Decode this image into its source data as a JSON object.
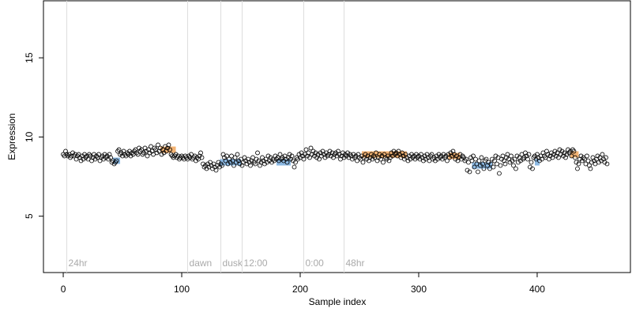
{
  "chart_data": {
    "type": "scatter",
    "xlabel": "Sample index",
    "ylabel": "Expression",
    "xlim": [
      -16.7,
      478.7
    ],
    "xticks": [
      0,
      100,
      200,
      300,
      400
    ],
    "ylim": [
      1.44,
      18.6
    ],
    "yticks": [
      5,
      10,
      15
    ],
    "point_color": "#000000",
    "values": [
      8.9,
      8.8,
      9.1,
      8.9,
      8.8,
      8.9,
      8.7,
      8.8,
      9.0,
      8.8,
      8.9,
      8.6,
      8.8,
      8.9,
      8.7,
      8.5,
      8.8,
      8.6,
      8.9,
      8.7,
      8.8,
      8.6,
      8.9,
      8.8,
      8.5,
      8.7,
      8.9,
      8.6,
      8.8,
      8.7,
      8.9,
      8.5,
      8.7,
      8.8,
      8.6,
      8.9,
      8.7,
      8.8,
      8.6,
      8.9,
      8.7,
      8.4,
      8.5,
      8.3,
      8.4,
      8.5,
      9.1,
      9.2,
      8.9,
      9.0,
      8.8,
      9.1,
      8.9,
      8.8,
      9.0,
      8.9,
      9.1,
      8.8,
      9.0,
      8.9,
      9.1,
      9.2,
      9.0,
      8.9,
      9.3,
      9.1,
      9.2,
      8.9,
      9.0,
      9.3,
      9.1,
      8.8,
      9.2,
      9.0,
      9.4,
      9.1,
      8.9,
      9.3,
      9.2,
      9.0,
      9.5,
      9.1,
      9.3,
      8.9,
      9.2,
      9.0,
      9.4,
      9.1,
      9.3,
      9.5,
      9.2,
      8.9,
      8.8,
      8.7,
      8.8,
      8.9,
      8.7,
      8.8,
      8.6,
      8.7,
      8.8,
      8.7,
      8.6,
      8.8,
      8.7,
      8.6,
      8.8,
      8.7,
      8.9,
      8.6,
      8.7,
      8.8,
      8.5,
      8.7,
      8.6,
      8.8,
      9.0,
      8.7,
      8.3,
      8.1,
      8.2,
      8.0,
      8.3,
      8.1,
      8.4,
      8.2,
      8.0,
      8.3,
      8.1,
      7.9,
      8.2,
      8.4,
      8.1,
      8.3,
      8.2,
      8.9,
      8.7,
      8.5,
      8.8,
      8.3,
      8.6,
      8.4,
      8.8,
      8.5,
      8.2,
      8.7,
      8.4,
      8.9,
      8.5,
      8.3,
      8.6,
      8.2,
      8.4,
      8.7,
      8.5,
      8.3,
      8.6,
      8.4,
      8.2,
      8.5,
      8.7,
      8.4,
      8.3,
      8.6,
      9.0,
      8.5,
      8.2,
      8.4,
      8.7,
      8.5,
      8.3,
      8.6,
      8.4,
      8.8,
      8.5,
      8.7,
      8.4,
      8.6,
      8.5,
      8.8,
      8.6,
      8.7,
      8.5,
      8.9,
      8.6,
      8.7,
      8.5,
      8.8,
      8.6,
      8.4,
      8.7,
      8.9,
      8.6,
      8.8,
      8.5,
      8.1,
      8.4,
      8.7,
      8.6,
      8.9,
      8.7,
      9.0,
      8.8,
      8.6,
      8.9,
      9.2,
      8.8,
      9.0,
      8.7,
      9.3,
      8.9,
      9.1,
      8.8,
      9.0,
      8.7,
      8.9,
      8.6,
      9.0,
      8.8,
      9.1,
      8.9,
      8.7,
      9.0,
      8.8,
      8.9,
      9.1,
      8.8,
      9.0,
      8.7,
      8.9,
      9.0,
      8.8,
      9.1,
      8.9,
      8.6,
      8.8,
      9.0,
      8.7,
      8.9,
      8.8,
      9.0,
      8.7,
      8.9,
      8.8,
      8.6,
      8.9,
      8.7,
      8.8,
      8.5,
      8.9,
      8.7,
      8.6,
      8.8,
      8.4,
      8.7,
      8.9,
      8.6,
      8.8,
      8.5,
      8.7,
      8.9,
      8.6,
      8.8,
      8.7,
      9.0,
      8.5,
      8.7,
      8.9,
      8.6,
      8.8,
      8.4,
      8.9,
      8.7,
      8.6,
      8.8,
      8.5,
      8.7,
      9.0,
      8.8,
      9.1,
      8.9,
      9.0,
      8.8,
      9.1,
      8.9,
      8.7,
      9.0,
      8.8,
      8.6,
      8.9,
      8.7,
      8.5,
      8.8,
      8.6,
      8.9,
      8.7,
      8.8,
      8.6,
      8.9,
      8.7,
      8.8,
      8.6,
      8.9,
      8.7,
      8.5,
      8.8,
      8.6,
      8.9,
      8.7,
      8.5,
      8.8,
      8.9,
      8.6,
      8.7,
      8.5,
      8.8,
      8.6,
      8.9,
      8.7,
      8.8,
      8.6,
      8.9,
      8.7,
      8.8,
      8.5,
      8.9,
      8.7,
      9.0,
      8.8,
      9.1,
      8.9,
      8.6,
      8.8,
      8.5,
      8.7,
      8.9,
      8.6,
      8.8,
      8.7,
      8.5,
      8.6,
      7.9,
      8.4,
      7.8,
      8.7,
      8.5,
      8.8,
      8.1,
      8.6,
      8.3,
      7.8,
      8.5,
      8.2,
      8.7,
      8.3,
      8.0,
      8.5,
      8.6,
      8.2,
      8.4,
      8.0,
      8.3,
      8.6,
      8.1,
      8.5,
      8.8,
      8.3,
      8.7,
      7.7,
      8.2,
      8.6,
      8.8,
      8.5,
      8.3,
      8.7,
      8.9,
      8.6,
      8.4,
      8.8,
      8.5,
      8.2,
      8.6,
      8.0,
      8.8,
      8.4,
      8.7,
      8.5,
      8.9,
      8.6,
      8.7,
      9.0,
      8.8,
      8.6,
      8.9,
      8.1,
      8.4,
      8.0,
      8.7,
      8.8,
      8.6,
      8.9,
      8.7,
      8.5,
      8.8,
      8.6,
      9.0,
      8.8,
      8.7,
      9.1,
      8.9,
      8.6,
      8.8,
      9.0,
      8.7,
      8.9,
      9.1,
      8.8,
      9.0,
      8.7,
      9.2,
      8.9,
      9.1,
      8.8,
      9.0,
      8.7,
      8.9,
      9.2,
      9.0,
      9.1,
      8.8,
      9.2,
      9.1,
      8.7,
      8.4,
      8.0,
      8.3,
      8.6,
      8.8,
      8.5,
      8.7,
      8.6,
      8.3,
      8.8,
      8.5,
      8.2,
      8.0,
      8.4,
      8.7,
      8.5,
      8.3,
      8.6,
      8.8,
      8.4,
      8.7,
      8.5,
      8.9,
      8.6,
      8.4,
      8.7,
      8.3
    ],
    "highlights": [
      {
        "x": [
          82,
          95
        ],
        "y": 9.2,
        "color": "#f0a050"
      },
      {
        "x": [
          252,
          290
        ],
        "y": 8.9,
        "color": "#f0a050"
      },
      {
        "x": [
          325,
          335
        ],
        "y": 8.8,
        "color": "#f0a050"
      },
      {
        "x": [
          428,
          435
        ],
        "y": 8.9,
        "color": "#f0a050"
      },
      {
        "x": [
          42,
          48
        ],
        "y": 8.5,
        "color": "#6fa8dc"
      },
      {
        "x": [
          132,
          150
        ],
        "y": 8.4,
        "color": "#6fa8dc"
      },
      {
        "x": [
          180,
          192
        ],
        "y": 8.4,
        "color": "#6fa8dc"
      },
      {
        "x": [
          345,
          362
        ],
        "y": 8.2,
        "color": "#6fa8dc"
      },
      {
        "x": [
          398,
          402
        ],
        "y": 8.4,
        "color": "#6fa8dc"
      }
    ],
    "annotations": [
      {
        "x": 3,
        "label": "24hr"
      },
      {
        "x": 105,
        "label": "dawn"
      },
      {
        "x": 133,
        "label": "dusk"
      },
      {
        "x": 151,
        "label": "12:00"
      },
      {
        "x": 203,
        "label": "0:00"
      },
      {
        "x": 237,
        "label": "48hr"
      }
    ]
  }
}
